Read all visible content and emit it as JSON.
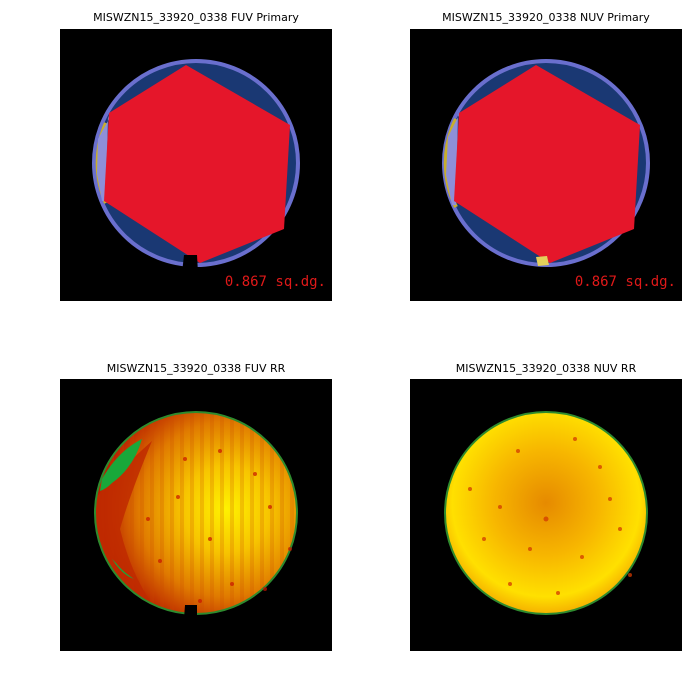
{
  "colors": {
    "background": "#000000",
    "primary_rim": "#6A6FCE",
    "primary_fill": "#1A3873",
    "primary_hexagon": "#E5162A",
    "primary_edge_strip": "#8E8FD8",
    "primary_edge_ring": "#C7AE2C",
    "primary_artifact_yellow": "#E3CF5A",
    "area_label": "#E01919",
    "rr_edge": "#2E8B2E",
    "rr_green_patch": "#19A83A"
  },
  "panels": [
    {
      "id": "fuv-primary",
      "title": "MISWZN15_33920_0338 FUV Primary",
      "type": "primary",
      "area_label": "0.867 sq.dg.",
      "icon": "detector-coverage-map"
    },
    {
      "id": "nuv-primary",
      "title": "MISWZN15_33920_0338 NUV Primary",
      "type": "primary",
      "area_label": "0.867 sq.dg.",
      "icon": "detector-coverage-map"
    },
    {
      "id": "fuv-rr",
      "title": "MISWZN15_33920_0338 FUV RR",
      "type": "relative-response",
      "icon": "relative-response-map"
    },
    {
      "id": "nuv-rr",
      "title": "MISWZN15_33920_0338 NUV RR",
      "type": "relative-response",
      "icon": "relative-response-map"
    }
  ]
}
